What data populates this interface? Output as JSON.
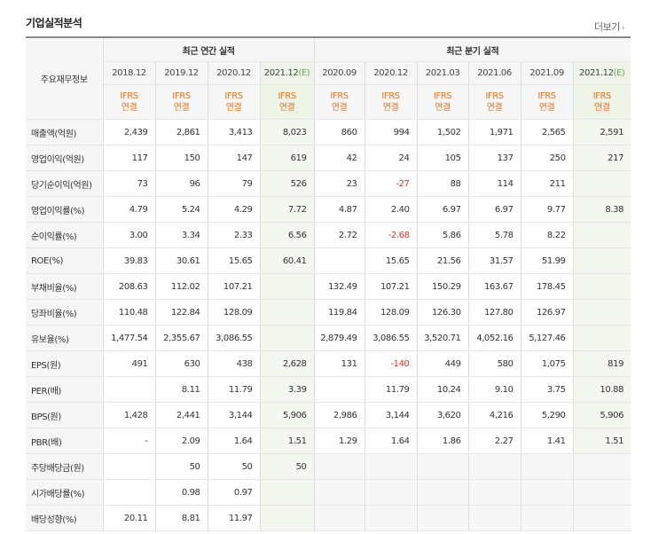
{
  "header": {
    "title": "기업실적분석",
    "more_label": "더보기"
  },
  "table": {
    "row_header_label": "주요재무정보",
    "annual_group_label": "최근 연간 실적",
    "quarter_group_label": "최근 분기 실적",
    "periods": [
      "2018.12",
      "2019.12",
      "2020.12",
      "2021.12",
      "2020.09",
      "2020.12",
      "2021.03",
      "2021.06",
      "2021.09",
      "2021.12"
    ],
    "period_estimate_suffix": "(E)",
    "ifrs_line1": "IFRS",
    "ifrs_line2": "연결",
    "rows": [
      {
        "label": "매출액(억원)",
        "values": [
          "2,439",
          "2,861",
          "3,413",
          "8,023",
          "860",
          "994",
          "1,502",
          "1,971",
          "2,565",
          "2,591"
        ]
      },
      {
        "label": "영업이익(억원)",
        "values": [
          "117",
          "150",
          "147",
          "619",
          "42",
          "24",
          "105",
          "137",
          "250",
          "217"
        ]
      },
      {
        "label": "당기순이익(억원)",
        "values": [
          "73",
          "96",
          "79",
          "526",
          "23",
          "-27",
          "88",
          "114",
          "211",
          ""
        ]
      },
      {
        "label": "영업이익률(%)",
        "values": [
          "4.79",
          "5.24",
          "4.29",
          "7.72",
          "4.87",
          "2.40",
          "6.97",
          "6.97",
          "9.77",
          "8.38"
        ]
      },
      {
        "label": "순이익률(%)",
        "values": [
          "3.00",
          "3.34",
          "2.33",
          "6.56",
          "2.72",
          "-2.68",
          "5.86",
          "5.78",
          "8.22",
          ""
        ]
      },
      {
        "label": "ROE(%)",
        "values": [
          "39.83",
          "30.61",
          "15.65",
          "60.41",
          "",
          "15.65",
          "21.56",
          "31.57",
          "51.99",
          ""
        ]
      },
      {
        "label": "부채비율(%)",
        "values": [
          "208.63",
          "112.02",
          "107.21",
          "",
          "132.49",
          "107.21",
          "150.29",
          "163.67",
          "178.45",
          ""
        ]
      },
      {
        "label": "당좌비율(%)",
        "values": [
          "110.48",
          "122.84",
          "128.09",
          "",
          "119.84",
          "128.09",
          "126.30",
          "127.80",
          "126.97",
          ""
        ]
      },
      {
        "label": "유보율(%)",
        "values": [
          "1,477.54",
          "2,355.67",
          "3,086.55",
          "",
          "2,879.49",
          "3,086.55",
          "3,520.71",
          "4,052.16",
          "5,127.46",
          ""
        ]
      },
      {
        "label": "EPS(원)",
        "values": [
          "491",
          "630",
          "438",
          "2,628",
          "131",
          "-140",
          "449",
          "580",
          "1,075",
          "819"
        ]
      },
      {
        "label": "PER(배)",
        "values": [
          "",
          "8.11",
          "11.79",
          "3.39",
          "",
          "11.79",
          "10.24",
          "9.10",
          "3.75",
          "10.88"
        ]
      },
      {
        "label": "BPS(원)",
        "values": [
          "1,428",
          "2,441",
          "3,144",
          "5,906",
          "2,986",
          "3,144",
          "3,620",
          "4,216",
          "5,290",
          "5,906"
        ]
      },
      {
        "label": "PBR(배)",
        "values": [
          "-",
          "2.09",
          "1.64",
          "1.51",
          "1.29",
          "1.64",
          "1.86",
          "2.27",
          "1.41",
          "1.51"
        ]
      },
      {
        "label": "주당배당금(원)",
        "values": [
          "",
          "50",
          "50",
          "50",
          "",
          "",
          "",
          "",
          "",
          ""
        ]
      },
      {
        "label": "시가배당률(%)",
        "values": [
          "",
          "0.98",
          "0.97",
          "",
          "",
          "",
          "",
          "",
          "",
          ""
        ]
      },
      {
        "label": "배당성향(%)",
        "values": [
          "20.11",
          "8.81",
          "11.97",
          "",
          "",
          "",
          "",
          "",
          "",
          ""
        ]
      }
    ],
    "colors": {
      "ifrs": "#e4731b",
      "estimate_bg": "#f3f7f0",
      "negative": "#e03030",
      "estimate_mark": "#6aa84f"
    }
  }
}
